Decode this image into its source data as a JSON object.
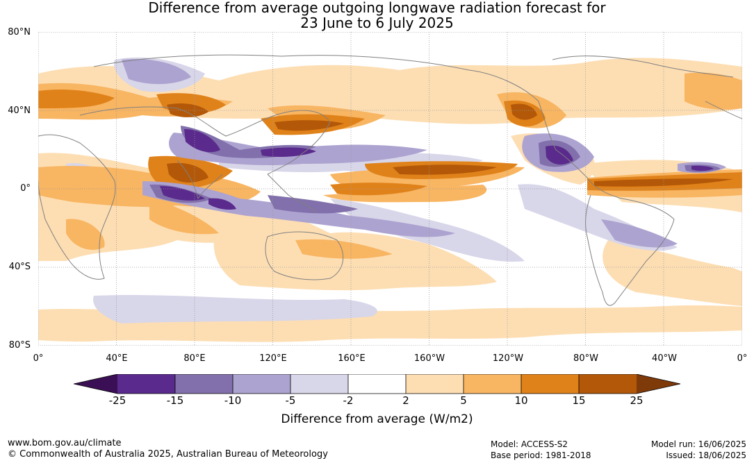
{
  "title": {
    "line1": "Difference from average outgoing longwave radiation forecast for",
    "line2": "23 June to 6 July 2025"
  },
  "map": {
    "lat_labels": [
      "80°N",
      "40°N",
      "0°",
      "40°S",
      "80°S"
    ],
    "lon_labels": [
      "0°",
      "40°E",
      "80°E",
      "120°E",
      "160°E",
      "160°W",
      "120°W",
      "80°W",
      "40°W",
      "0°"
    ],
    "colors": {
      "neg25": "#3b0f55",
      "neg15": "#5a2a8c",
      "neg10": "#8170ab",
      "neg5": "#ada3d0",
      "neg2": "#d8d6e9",
      "zero": "#ffffff",
      "pos2": "#fddeb3",
      "pos5": "#f8b562",
      "pos10": "#e0821a",
      "pos15": "#b35808",
      "pos25": "#7f3a0a",
      "coast": "#808080",
      "grid": "#999999"
    }
  },
  "colorbar": {
    "ticks": [
      "-25",
      "-15",
      "-10",
      "-5",
      "-2",
      "2",
      "5",
      "10",
      "15",
      "25"
    ],
    "label": "Difference from average (W/m2)"
  },
  "footer": {
    "url": "www.bom.gov.au/climate",
    "copyright": "© Commonwealth of Australia 2025, Australian Bureau of Meteorology",
    "model": "Model: ACCESS-S2",
    "base_period": "Base period: 1981-2018",
    "model_run": "Model run: 16/06/2025",
    "issued": "Issued: 18/06/2025"
  }
}
